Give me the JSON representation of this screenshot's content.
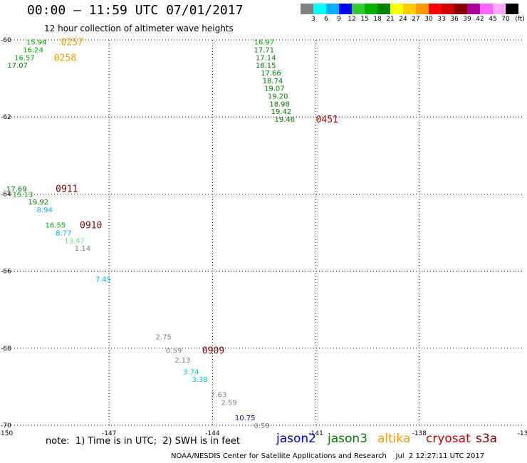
{
  "header": {
    "title": "00:00 – 11:59 UTC 07/01/2017",
    "subtitle": "12 hour collection of altimeter wave heights"
  },
  "colorbar": {
    "ticks": [
      "3",
      "6",
      "9",
      "12",
      "15",
      "18",
      "21",
      "24",
      "27",
      "30",
      "33",
      "36",
      "39",
      "42",
      "45",
      "70"
    ],
    "unit": "(ft)",
    "colors": [
      "#808080",
      "#00ffff",
      "#00b0ff",
      "#0000ff",
      "#33cc33",
      "#00b000",
      "#008000",
      "#ffff00",
      "#ffcc00",
      "#ff9900",
      "#ff0000",
      "#cc0000",
      "#880000",
      "#aa0099",
      "#ff66ff",
      "#ffaaff",
      "#000000"
    ]
  },
  "note": "note:  1) Time is in UTC;  2) SWH is in feet",
  "legend": [
    {
      "name": "jason2",
      "color": "#0000cc"
    },
    {
      "name": "jason3",
      "color": "#008000"
    },
    {
      "name": "altika",
      "color": "#ff9900"
    },
    {
      "name": "cryosat",
      "color": "#cc0000"
    },
    {
      "name": "s3a",
      "color": "#880000"
    }
  ],
  "footer": "NOAA/NESDIS Center for Satellite Applications and Research    Jul  2 12:27:11 UTC 2017",
  "chart_data": {
    "type": "scatter",
    "xlim": [
      -150,
      -135
    ],
    "ylim": [
      -70,
      -60
    ],
    "xticks": [
      "-150",
      "-147",
      "-144",
      "-141",
      "-138",
      "-13"
    ],
    "yticks": [
      {
        "value": -60,
        "label": "-60"
      },
      {
        "value": -62,
        "label": "-62"
      },
      {
        "value": -64,
        "label": "-64"
      },
      {
        "value": -66,
        "label": "-66"
      },
      {
        "value": -68,
        "label": "-68"
      },
      {
        "value": -70,
        "label": "-70"
      }
    ],
    "grid": true,
    "points": [
      {
        "lon": -149.4,
        "lat": -60.05,
        "swh": "15.94",
        "color": "#00b000"
      },
      {
        "lon": -149.5,
        "lat": -60.25,
        "swh": "16.24",
        "color": "#00b000"
      },
      {
        "lon": -149.75,
        "lat": -60.45,
        "swh": "16.57",
        "color": "#00b000"
      },
      {
        "lon": -149.95,
        "lat": -60.65,
        "swh": "17.07",
        "color": "#008000"
      },
      {
        "lon": -142.8,
        "lat": -60.05,
        "swh": "16.97",
        "color": "#00b000"
      },
      {
        "lon": -142.8,
        "lat": -60.25,
        "swh": "17.71",
        "color": "#008000"
      },
      {
        "lon": -142.75,
        "lat": -60.45,
        "swh": "17.14",
        "color": "#008000"
      },
      {
        "lon": -142.75,
        "lat": -60.65,
        "swh": "18.15",
        "color": "#008000"
      },
      {
        "lon": -142.6,
        "lat": -60.85,
        "swh": "17.66",
        "color": "#008000"
      },
      {
        "lon": -142.55,
        "lat": -61.05,
        "swh": "18.74",
        "color": "#008000"
      },
      {
        "lon": -142.5,
        "lat": -61.25,
        "swh": "19.07",
        "color": "#008000"
      },
      {
        "lon": -142.4,
        "lat": -61.45,
        "swh": "19.20",
        "color": "#008000"
      },
      {
        "lon": -142.35,
        "lat": -61.65,
        "swh": "18.98",
        "color": "#008000"
      },
      {
        "lon": -142.3,
        "lat": -61.85,
        "swh": "19.42",
        "color": "#008000"
      },
      {
        "lon": -142.2,
        "lat": -62.05,
        "swh": "19.46",
        "color": "#008000"
      },
      {
        "lon": -149.98,
        "lat": -63.85,
        "swh": "17.69",
        "color": "#008000"
      },
      {
        "lon": -149.8,
        "lat": -64.0,
        "swh": "15.13",
        "color": "#00b000"
      },
      {
        "lon": -149.35,
        "lat": -64.2,
        "swh": "19.92",
        "color": "#008000"
      },
      {
        "lon": -149.1,
        "lat": -64.4,
        "swh": "8.94",
        "color": "#00b0ff"
      },
      {
        "lon": -148.85,
        "lat": -64.8,
        "swh": "16.55",
        "color": "#00b000"
      },
      {
        "lon": -148.55,
        "lat": -65.0,
        "swh": "8.77",
        "color": "#00b0ff"
      },
      {
        "lon": -148.3,
        "lat": -65.2,
        "swh": "13.47",
        "color": "#66ee66"
      },
      {
        "lon": -148.0,
        "lat": -65.4,
        "swh": "1.14",
        "color": "#808080"
      },
      {
        "lon": -147.4,
        "lat": -66.2,
        "swh": "7.45",
        "color": "#00b0ff"
      },
      {
        "lon": -145.65,
        "lat": -67.7,
        "swh": "2.75",
        "color": "#808080"
      },
      {
        "lon": -145.35,
        "lat": -68.05,
        "swh": "0.59",
        "color": "#808080"
      },
      {
        "lon": -145.1,
        "lat": -68.3,
        "swh": "2.13",
        "color": "#808080"
      },
      {
        "lon": -144.85,
        "lat": -68.6,
        "swh": "3.74",
        "color": "#00cccc"
      },
      {
        "lon": -144.6,
        "lat": -68.8,
        "swh": "3.38",
        "color": "#00cccc"
      },
      {
        "lon": -144.05,
        "lat": -69.2,
        "swh": "2.63",
        "color": "#808080"
      },
      {
        "lon": -143.75,
        "lat": -69.4,
        "swh": "2.59",
        "color": "#808080"
      },
      {
        "lon": -143.35,
        "lat": -69.8,
        "swh": "10.75",
        "color": "#0000cc"
      },
      {
        "lon": -142.8,
        "lat": -70.0,
        "swh": "0.59",
        "color": "#808080"
      }
    ],
    "time_labels": [
      {
        "lon": -148.4,
        "lat": -60.05,
        "text": "0257",
        "color": "#ff9900"
      },
      {
        "lon": -148.6,
        "lat": -60.45,
        "text": "0258",
        "color": "#ff9900"
      },
      {
        "lon": -141.0,
        "lat": -62.05,
        "text": "0451",
        "color": "#cc0000"
      },
      {
        "lon": -148.55,
        "lat": -63.85,
        "text": "0911",
        "color": "#880000"
      },
      {
        "lon": -147.85,
        "lat": -64.8,
        "text": "0910",
        "color": "#880000"
      },
      {
        "lon": -144.3,
        "lat": -68.05,
        "text": "0909",
        "color": "#880000"
      }
    ]
  }
}
